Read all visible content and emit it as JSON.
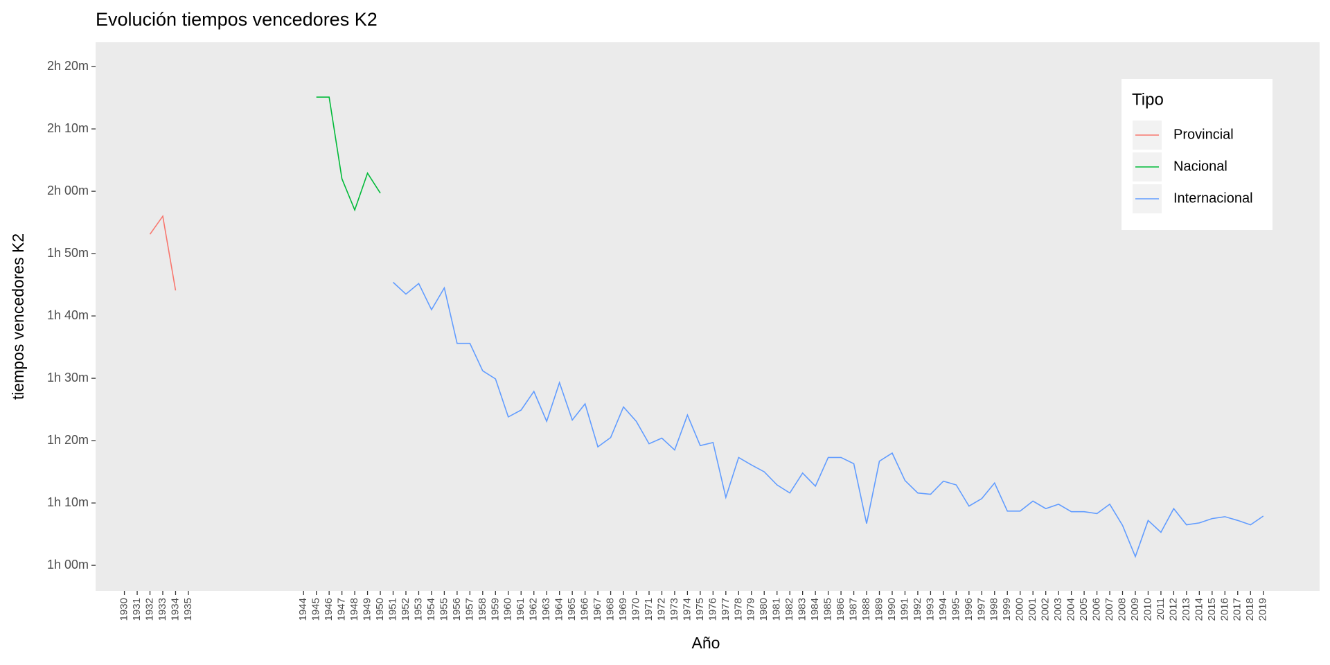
{
  "chart_data": {
    "type": "line",
    "title": "Evolución tiempos vencedores K2",
    "x_label": "Año",
    "y_label": "tiempos vencedores K2",
    "legend_title": "Tipo",
    "legend_position": "top-right",
    "grid": false,
    "x": [
      1932,
      1933,
      1934,
      1945,
      1946,
      1947,
      1948,
      1949,
      1950,
      1951,
      1952,
      1953,
      1954,
      1955,
      1956,
      1957,
      1958,
      1959,
      1960,
      1961,
      1962,
      1963,
      1964,
      1965,
      1966,
      1967,
      1968,
      1969,
      1970,
      1971,
      1972,
      1973,
      1974,
      1975,
      1976,
      1977,
      1978,
      1979,
      1980,
      1981,
      1982,
      1983,
      1984,
      1985,
      1986,
      1987,
      1988,
      1989,
      1990,
      1991,
      1992,
      1993,
      1994,
      1995,
      1996,
      1997,
      1998,
      1999,
      2000,
      2001,
      2002,
      2003,
      2004,
      2005,
      2006,
      2007,
      2008,
      2009,
      2010,
      2011,
      2012,
      2013,
      2014,
      2015,
      2016,
      2017,
      2018,
      2019
    ],
    "series": [
      {
        "name": "Provincial",
        "color": "#F8766D",
        "values": [
          113.1,
          116.0,
          104.1,
          null,
          null,
          null,
          null,
          null,
          null,
          null,
          null,
          null,
          null,
          null,
          null,
          null,
          null,
          null,
          null,
          null,
          null,
          null,
          null,
          null,
          null,
          null,
          null,
          null,
          null,
          null,
          null,
          null,
          null,
          null,
          null,
          null,
          null,
          null,
          null,
          null,
          null,
          null,
          null,
          null,
          null,
          null,
          null,
          null,
          null,
          null,
          null,
          null,
          null,
          null,
          null,
          null,
          null,
          null,
          null,
          null,
          null,
          null,
          null,
          null,
          null,
          null,
          null,
          null,
          null,
          null,
          null,
          null,
          null,
          null,
          null,
          null,
          null,
          null
        ]
      },
      {
        "name": "Nacional",
        "color": "#00BA38",
        "values": [
          null,
          null,
          null,
          135.1,
          135.1,
          122.0,
          117.0,
          122.9,
          119.7,
          null,
          null,
          null,
          null,
          null,
          null,
          null,
          null,
          null,
          null,
          null,
          null,
          null,
          null,
          null,
          null,
          null,
          null,
          null,
          null,
          null,
          null,
          null,
          null,
          null,
          null,
          null,
          null,
          null,
          null,
          null,
          null,
          null,
          null,
          null,
          null,
          null,
          null,
          null,
          null,
          null,
          null,
          null,
          null,
          null,
          null,
          null,
          null,
          null,
          null,
          null,
          null,
          null,
          null,
          null,
          null,
          null,
          null,
          null,
          null,
          null,
          null,
          null,
          null,
          null,
          null,
          null,
          null,
          null
        ]
      },
      {
        "name": "Internacional",
        "color": "#619CFF",
        "values": [
          null,
          null,
          null,
          null,
          null,
          null,
          null,
          null,
          null,
          105.4,
          103.5,
          105.2,
          101.0,
          104.5,
          95.6,
          95.6,
          91.2,
          89.9,
          83.8,
          84.9,
          87.9,
          83.1,
          89.3,
          83.3,
          85.9,
          79.0,
          80.5,
          85.4,
          83.1,
          79.5,
          80.4,
          78.5,
          84.1,
          79.2,
          79.7,
          70.9,
          77.3,
          76.1,
          75.0,
          72.9,
          71.6,
          74.8,
          72.7,
          77.3,
          77.3,
          76.3,
          66.7,
          76.7,
          78.0,
          73.6,
          71.6,
          71.4,
          73.5,
          72.9,
          69.5,
          70.7,
          73.2,
          68.7,
          68.7,
          70.3,
          69.1,
          69.8,
          68.6,
          68.6,
          68.3,
          69.8,
          66.4,
          61.4,
          67.2,
          65.3,
          69.1,
          66.5,
          66.8,
          67.5,
          67.8,
          67.2,
          66.5,
          67.9
        ]
      }
    ],
    "xlim": [
      1927.75,
      2023.4
    ],
    "xticks": [
      1930,
      1931,
      1932,
      1933,
      1934,
      1935,
      1944,
      1945,
      1946,
      1947,
      1948,
      1949,
      1950,
      1951,
      1952,
      1953,
      1954,
      1955,
      1956,
      1957,
      1958,
      1959,
      1960,
      1961,
      1962,
      1963,
      1964,
      1965,
      1966,
      1967,
      1968,
      1969,
      1970,
      1971,
      1972,
      1973,
      1974,
      1975,
      1976,
      1977,
      1978,
      1979,
      1980,
      1981,
      1982,
      1983,
      1984,
      1985,
      1986,
      1987,
      1988,
      1989,
      1990,
      1991,
      1992,
      1993,
      1994,
      1995,
      1996,
      1997,
      1998,
      1999,
      2000,
      2001,
      2002,
      2003,
      2004,
      2005,
      2006,
      2007,
      2008,
      2009,
      2010,
      2011,
      2012,
      2013,
      2014,
      2015,
      2016,
      2017,
      2018,
      2019
    ],
    "ylim": [
      55.9,
      143.9
    ],
    "yticks": [
      {
        "value": 60,
        "label": "1h 00m"
      },
      {
        "value": 70,
        "label": "1h 10m"
      },
      {
        "value": 80,
        "label": "1h 20m"
      },
      {
        "value": 90,
        "label": "1h 30m"
      },
      {
        "value": 100,
        "label": "1h 40m"
      },
      {
        "value": 110,
        "label": "1h 50m"
      },
      {
        "value": 120,
        "label": "2h 00m"
      },
      {
        "value": 130,
        "label": "2h 10m"
      },
      {
        "value": 140,
        "label": "2h 20m"
      }
    ]
  }
}
